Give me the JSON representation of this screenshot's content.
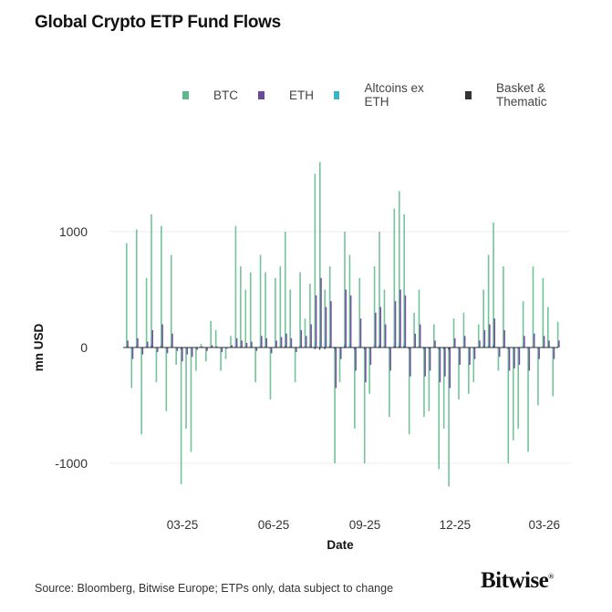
{
  "chart_data": {
    "type": "bar",
    "title": "Global Crypto ETP Fund Flows",
    "xlabel": "Date",
    "ylabel": "mn USD",
    "ylim": [
      -1350,
      1700
    ],
    "yticks": [
      1000,
      0,
      -1000
    ],
    "ytick_labels": [
      "1000",
      "0",
      "-1000"
    ],
    "xtick_dates": [
      "2025-03-01",
      "2025-06-01",
      "2025-09-01",
      "2025-12-01",
      "2026-03-01"
    ],
    "xtick_labels": [
      "03-25",
      "06-25",
      "09-25",
      "12-25",
      "03-26"
    ],
    "grid": "horizontal",
    "legend_position": "top-right",
    "x": [
      "2025-01-03",
      "2025-01-08",
      "2025-01-13",
      "2025-01-18",
      "2025-01-23",
      "2025-01-28",
      "2025-02-02",
      "2025-02-07",
      "2025-02-12",
      "2025-02-17",
      "2025-02-22",
      "2025-02-27",
      "2025-03-04",
      "2025-03-09",
      "2025-03-14",
      "2025-03-19",
      "2025-03-24",
      "2025-03-29",
      "2025-04-03",
      "2025-04-08",
      "2025-04-13",
      "2025-04-18",
      "2025-04-23",
      "2025-04-28",
      "2025-05-03",
      "2025-05-08",
      "2025-05-13",
      "2025-05-18",
      "2025-05-23",
      "2025-05-28",
      "2025-06-02",
      "2025-06-07",
      "2025-06-12",
      "2025-06-17",
      "2025-06-22",
      "2025-06-27",
      "2025-07-02",
      "2025-07-07",
      "2025-07-12",
      "2025-07-17",
      "2025-07-22",
      "2025-07-27",
      "2025-08-01",
      "2025-08-06",
      "2025-08-11",
      "2025-08-16",
      "2025-08-21",
      "2025-08-26",
      "2025-08-31",
      "2025-09-05",
      "2025-09-10",
      "2025-09-15",
      "2025-09-20",
      "2025-09-25",
      "2025-09-30",
      "2025-10-05",
      "2025-10-10",
      "2025-10-15",
      "2025-10-20",
      "2025-10-25",
      "2025-10-30",
      "2025-11-04",
      "2025-11-09",
      "2025-11-14",
      "2025-11-19",
      "2025-11-24",
      "2025-11-29",
      "2025-12-04",
      "2025-12-09",
      "2025-12-14",
      "2025-12-19",
      "2025-12-24",
      "2025-12-29",
      "2026-01-03",
      "2026-01-08",
      "2026-01-13",
      "2026-01-18",
      "2026-01-23",
      "2026-01-28",
      "2026-02-02",
      "2026-02-07",
      "2026-02-12",
      "2026-02-17",
      "2026-02-22",
      "2026-02-27",
      "2026-03-04",
      "2026-03-09",
      "2026-03-14"
    ],
    "series": [
      {
        "name": "BTC",
        "color": "#5cb88a",
        "values": [
          900,
          -350,
          1020,
          -750,
          600,
          1150,
          -300,
          1050,
          -550,
          800,
          -150,
          -1180,
          -700,
          -900,
          -200,
          30,
          -120,
          230,
          150,
          -200,
          -100,
          100,
          1050,
          700,
          500,
          650,
          -300,
          800,
          650,
          -450,
          600,
          700,
          1000,
          500,
          -300,
          650,
          250,
          550,
          1500,
          1600,
          500,
          700,
          -1000,
          -300,
          1000,
          800,
          -700,
          600,
          -1000,
          -400,
          700,
          1000,
          500,
          -600,
          1200,
          1350,
          1150,
          -750,
          300,
          500,
          -600,
          -550,
          200,
          -1050,
          -700,
          -1200,
          250,
          -450,
          300,
          -400,
          -300,
          200,
          500,
          800,
          1080,
          -200,
          700,
          -1000,
          -800,
          -700,
          400,
          -900,
          700,
          -500,
          600,
          350,
          -420,
          220
        ]
      },
      {
        "name": "ETH",
        "color": "#6a4a9c",
        "values": [
          60,
          -100,
          80,
          -60,
          50,
          150,
          -40,
          200,
          -50,
          120,
          -30,
          -120,
          -60,
          -80,
          -20,
          10,
          -30,
          20,
          10,
          -40,
          -10,
          20,
          80,
          60,
          40,
          50,
          -30,
          100,
          80,
          -50,
          60,
          90,
          120,
          80,
          -40,
          150,
          100,
          200,
          450,
          600,
          350,
          400,
          -350,
          -100,
          500,
          450,
          -200,
          250,
          -300,
          -150,
          300,
          350,
          200,
          -200,
          400,
          500,
          450,
          -250,
          120,
          200,
          -250,
          -200,
          60,
          -300,
          -250,
          -350,
          80,
          -150,
          100,
          -150,
          -100,
          60,
          150,
          200,
          250,
          -80,
          150,
          -200,
          -180,
          -150,
          100,
          -200,
          120,
          -100,
          100,
          60,
          -100,
          60
        ]
      },
      {
        "name": "Altcoins ex ETH",
        "color": "#3bb5c4",
        "values": [
          10,
          -10,
          20,
          -10,
          15,
          30,
          -5,
          25,
          -10,
          20,
          -5,
          -20,
          -10,
          -15,
          -5,
          5,
          -5,
          5,
          5,
          -5,
          -5,
          5,
          15,
          10,
          10,
          10,
          -5,
          15,
          10,
          -10,
          10,
          15,
          20,
          15,
          -5,
          20,
          15,
          25,
          40,
          50,
          30,
          30,
          -30,
          -10,
          35,
          30,
          -20,
          20,
          -25,
          -10,
          25,
          30,
          20,
          -15,
          35,
          40,
          35,
          -20,
          10,
          15,
          -20,
          -15,
          10,
          -25,
          -20,
          -30,
          10,
          -10,
          10,
          -10,
          -10,
          5,
          15,
          20,
          25,
          -5,
          15,
          -20,
          -15,
          -10,
          10,
          -15,
          10,
          -10,
          10,
          5,
          -10,
          5
        ]
      },
      {
        "name": "Basket & Thematic",
        "color": "#333333",
        "values": [
          5,
          -5,
          5,
          -5,
          5,
          10,
          -5,
          10,
          -5,
          5,
          -5,
          -10,
          -5,
          -5,
          -5,
          0,
          -5,
          5,
          0,
          -5,
          0,
          5,
          5,
          5,
          5,
          5,
          -5,
          5,
          5,
          -5,
          5,
          5,
          10,
          5,
          -5,
          5,
          5,
          5,
          -15,
          -20,
          -15,
          10,
          -10,
          -5,
          10,
          5,
          -10,
          5,
          -10,
          -5,
          5,
          10,
          5,
          -5,
          10,
          10,
          10,
          -10,
          5,
          5,
          -10,
          -10,
          5,
          -10,
          -10,
          -15,
          5,
          -5,
          5,
          -5,
          -5,
          5,
          5,
          5,
          10,
          -5,
          5,
          -10,
          -5,
          -5,
          5,
          -5,
          5,
          -5,
          5,
          5,
          -5,
          5
        ]
      }
    ]
  },
  "legend": {
    "items": [
      "BTC",
      "ETH",
      "Altcoins ex ETH",
      "Basket & Thematic"
    ]
  },
  "footer": {
    "source": "Source: Bloomberg, Bitwise Europe; ETPs only, data subject to change",
    "logo": "Bitwise"
  }
}
